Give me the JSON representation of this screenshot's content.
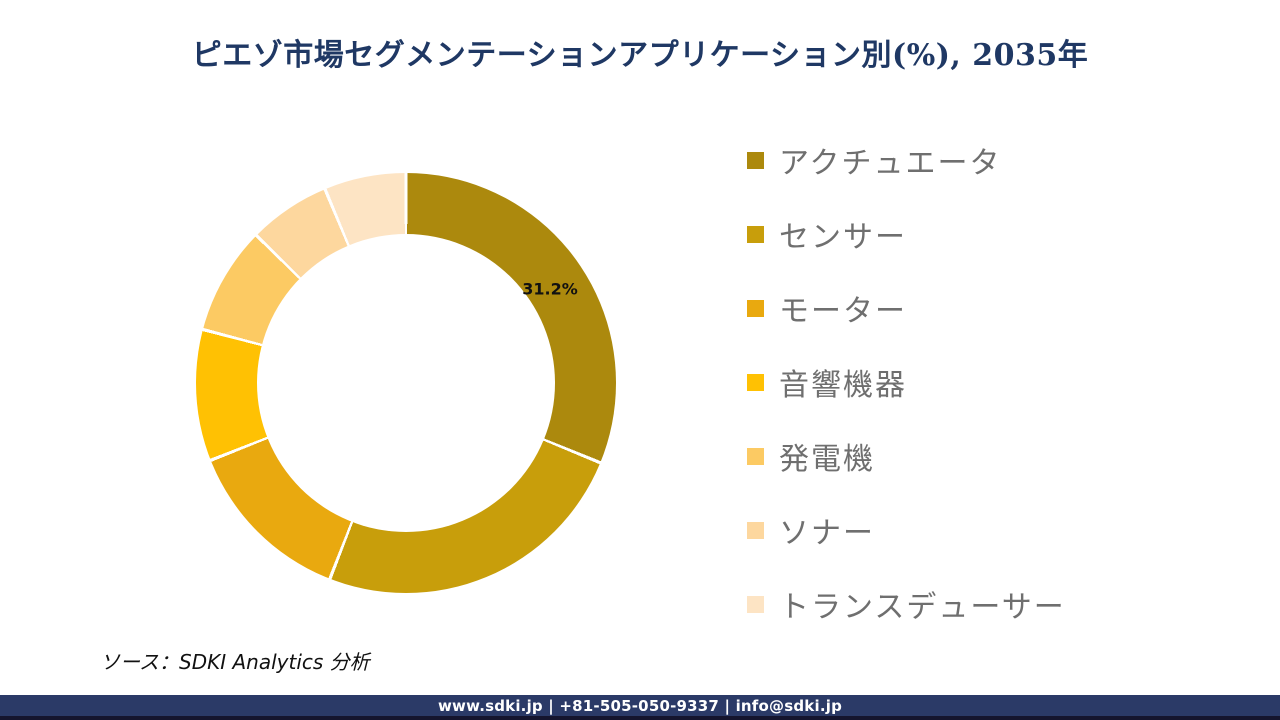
{
  "page": {
    "background": "#FFFFFF"
  },
  "title": {
    "text": "ピエゾ市場セグメンテーションアプリケーション別(%), 2035年",
    "color": "#1F3864"
  },
  "chart_data": {
    "type": "pie",
    "subtype": "donut",
    "title": "ピエゾ市場セグメンテーションアプリケーション別(%), 2035年",
    "unit": "%",
    "legend_position": "right",
    "start_angle_deg": 0,
    "direction": "clockwise",
    "donut_hole_ratio": 0.71,
    "slice_border_color": "#FFFFFF",
    "categories": [
      "アクチュエータ",
      "センサー",
      "モーター",
      "音響機器",
      "発電機",
      "ソナー",
      "トランスデューサー"
    ],
    "values": [
      31.2,
      24.7,
      13.1,
      10.1,
      8.3,
      6.3,
      6.3
    ],
    "colors": [
      "#AC890D",
      "#C89E0B",
      "#E9A90F",
      "#FFC103",
      "#FCCA63",
      "#FDD79E",
      "#FDE4C4"
    ],
    "data_labels": [
      {
        "category": "アクチュエータ",
        "text": "31.2%"
      }
    ]
  },
  "source_note": {
    "text": "ソース：SDKI Analytics 分析"
  },
  "footer": {
    "text": "www.sdki.jp | +81-505-050-9337 | info@sdki.jp",
    "background": "#2B3A67"
  }
}
